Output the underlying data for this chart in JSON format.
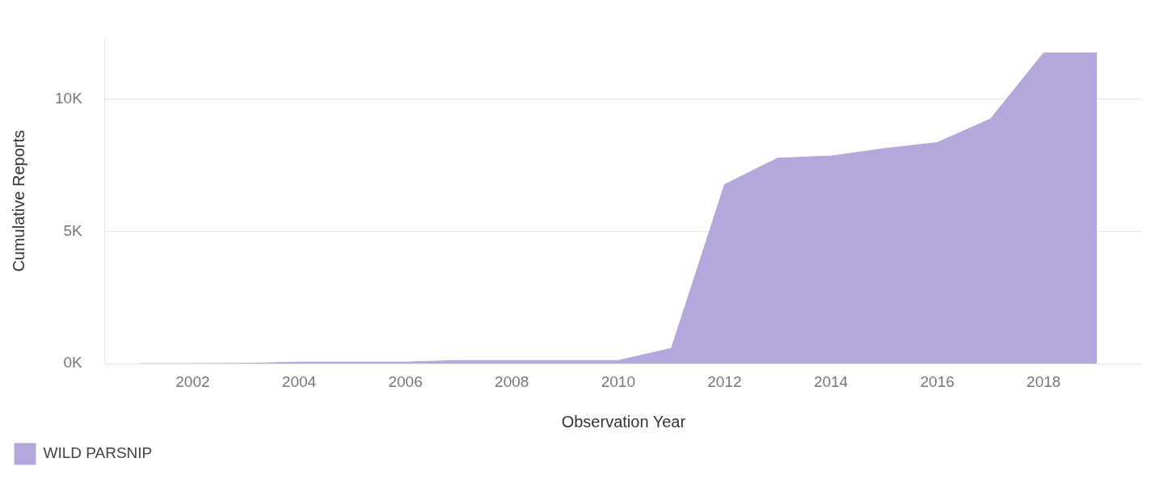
{
  "chart_data": {
    "type": "area",
    "xlabel": "Observation Year",
    "ylabel": "Cumulative Reports",
    "x": [
      2001,
      2002,
      2003,
      2004,
      2005,
      2006,
      2007,
      2008,
      2009,
      2010,
      2011,
      2012,
      2013,
      2014,
      2015,
      2016,
      2017,
      2018,
      2019
    ],
    "series": [
      {
        "name": "WILD PARSNIP",
        "color": "#b3a7db",
        "values": [
          0,
          0,
          10,
          60,
          60,
          60,
          120,
          120,
          120,
          120,
          580,
          6770,
          7770,
          7850,
          8130,
          8360,
          9250,
          11750,
          11750
        ]
      }
    ],
    "xlim": [
      2000.35,
      2019.85
    ],
    "xticks": [
      2002,
      2004,
      2006,
      2008,
      2010,
      2012,
      2014,
      2016,
      2018
    ],
    "yticks": [
      {
        "value": 0,
        "label": "0K"
      },
      {
        "value": 5000,
        "label": "5K"
      },
      {
        "value": 10000,
        "label": "10K"
      }
    ],
    "ylim": [
      0,
      12300
    ],
    "grid": "y",
    "legend": "bottom left"
  }
}
